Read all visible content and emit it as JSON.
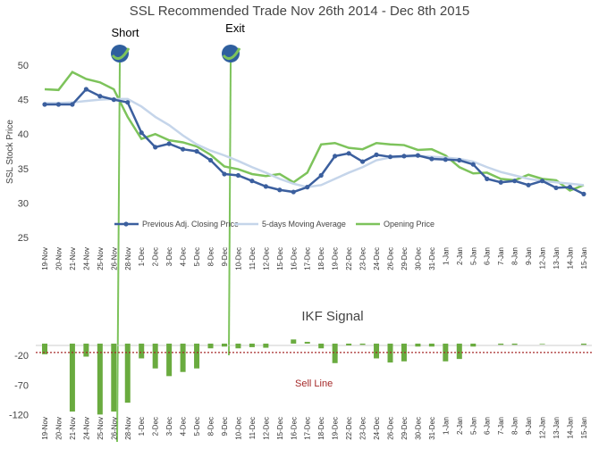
{
  "chart_data": [
    {
      "type": "line",
      "title": "SSL Recommended Trade Nov 26th 2014 - Dec 8th 2015",
      "y_label": "SSL Stock Price",
      "categories": [
        "19-Nov",
        "20-Nov",
        "21-Nov",
        "24-Nov",
        "25-Nov",
        "26-Nov",
        "28-Nov",
        "1-Dec",
        "2-Dec",
        "3-Dec",
        "4-Dec",
        "5-Dec",
        "8-Dec",
        "9-Dec",
        "10-Dec",
        "11-Dec",
        "12-Dec",
        "15-Dec",
        "16-Dec",
        "17-Dec",
        "18-Dec",
        "19-Dec",
        "22-Dec",
        "23-Dec",
        "24-Dec",
        "26-Dec",
        "29-Dec",
        "30-Dec",
        "31-Dec",
        "1-Jan",
        "2-Jan",
        "5-Jan",
        "6-Jan",
        "7-Jan",
        "8-Jan",
        "9-Jan",
        "12-Jan",
        "13-Jan",
        "14-Jan",
        "15-Jan"
      ],
      "series": [
        {
          "name": "Previous Adj. Closing Price",
          "color": "#3b5f9e",
          "markers": true,
          "values": [
            44.3,
            44.3,
            44.3,
            46.5,
            45.5,
            45.0,
            44.6,
            40.2,
            38.1,
            38.6,
            37.8,
            37.5,
            36.2,
            34.2,
            34.0,
            33.2,
            32.4,
            31.9,
            31.6,
            32.3,
            34.0,
            36.8,
            37.2,
            36.0,
            37.0,
            36.7,
            36.8,
            36.9,
            36.4,
            36.3,
            36.2,
            35.6,
            33.5,
            33.0,
            33.2,
            32.6,
            33.2,
            32.2,
            32.3,
            31.3
          ]
        },
        {
          "name": "5-days Moving Average",
          "color": "#c5d5ea",
          "markers": false,
          "values": [
            44.5,
            44.5,
            44.6,
            44.8,
            45.0,
            45.1,
            45.1,
            44.0,
            42.5,
            41.3,
            39.8,
            38.5,
            37.6,
            36.9,
            36.1,
            35.2,
            34.4,
            33.5,
            32.8,
            32.3,
            32.6,
            33.5,
            34.4,
            35.2,
            36.2,
            36.6,
            36.7,
            36.8,
            36.7,
            36.6,
            36.4,
            36.0,
            35.2,
            34.5,
            34.0,
            33.5,
            33.2,
            33.0,
            32.8,
            32.6
          ]
        },
        {
          "name": "Opening Price",
          "color": "#7dc35b",
          "markers": false,
          "values": [
            46.5,
            46.4,
            49.0,
            48.0,
            47.5,
            46.5,
            42.5,
            39.3,
            40.0,
            39.1,
            38.8,
            38.2,
            37.0,
            35.3,
            34.9,
            34.2,
            33.9,
            34.2,
            33.0,
            34.4,
            38.5,
            38.7,
            38.0,
            37.8,
            38.7,
            38.5,
            38.4,
            37.7,
            37.8,
            36.9,
            35.2,
            34.3,
            34.4,
            33.5,
            33.3,
            34.1,
            33.5,
            33.3,
            31.8,
            32.6
          ]
        }
      ],
      "ylim": [
        25,
        50
      ],
      "yticks": [
        25,
        30,
        35,
        40,
        45,
        50
      ],
      "legend": "bottom",
      "annotations": [
        "Short",
        "Exit"
      ]
    },
    {
      "type": "bar",
      "title": "IKF Signal",
      "color": "#6aab3f",
      "categories": [
        "19-Nov",
        "20-Nov",
        "21-Nov",
        "24-Nov",
        "25-Nov",
        "26-Nov",
        "28-Nov",
        "1-Dec",
        "2-Dec",
        "3-Dec",
        "4-Dec",
        "5-Dec",
        "8-Dec",
        "9-Dec",
        "10-Dec",
        "11-Dec",
        "12-Dec",
        "15-Dec",
        "16-Dec",
        "17-Dec",
        "18-Dec",
        "19-Dec",
        "22-Dec",
        "23-Dec",
        "24-Dec",
        "26-Dec",
        "29-Dec",
        "30-Dec",
        "31-Dec",
        "1-Jan",
        "2-Jan",
        "5-Jan",
        "6-Jan",
        "7-Jan",
        "8-Jan",
        "9-Jan",
        "12-Jan",
        "13-Jan",
        "14-Jan",
        "15-Jan"
      ],
      "values": [
        -18,
        0,
        -115,
        -22,
        -120,
        -115,
        -100,
        -25,
        -42,
        -55,
        -48,
        -42,
        -8,
        -5,
        -8,
        -6,
        -7,
        0,
        7,
        3,
        -8,
        -33,
        -3,
        -2,
        -25,
        -32,
        -30,
        -5,
        -5,
        -30,
        -26,
        -5,
        0,
        -2,
        -2,
        0,
        -1,
        0,
        0,
        -2
      ],
      "ylim": [
        -130,
        15
      ],
      "yticks": [
        -20,
        -70,
        -120
      ],
      "threshold": -15,
      "threshold_label": "Sell Line",
      "threshold_color": "#a52a2a"
    }
  ]
}
